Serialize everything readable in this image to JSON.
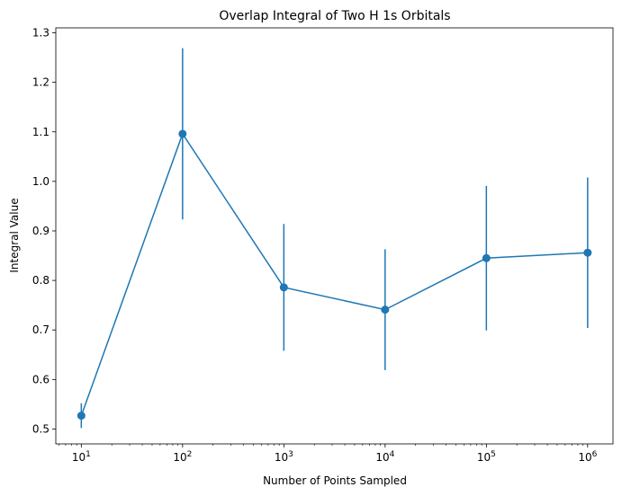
{
  "chart_data": {
    "type": "line",
    "title": "Overlap Integral of Two H 1s Orbitals",
    "xlabel": "Number of Points Sampled",
    "ylabel": "Integral Value",
    "x_scale": "log",
    "xlim": [
      5.6,
      1780000
    ],
    "ylim": [
      0.47,
      1.31
    ],
    "grid": false,
    "color": "#1f77b4",
    "x_ticks": [
      {
        "value": 10,
        "base": "10",
        "exp": "1"
      },
      {
        "value": 100,
        "base": "10",
        "exp": "2"
      },
      {
        "value": 1000,
        "base": "10",
        "exp": "3"
      },
      {
        "value": 10000,
        "base": "10",
        "exp": "4"
      },
      {
        "value": 100000,
        "base": "10",
        "exp": "5"
      },
      {
        "value": 1000000,
        "base": "10",
        "exp": "6"
      }
    ],
    "y_ticks": [
      "0.5",
      "0.6",
      "0.7",
      "0.8",
      "0.9",
      "1.0",
      "1.1",
      "1.2",
      "1.3"
    ],
    "series": [
      {
        "x": [
          10,
          100,
          1000,
          10000,
          100000,
          1000000
        ],
        "y": [
          0.527,
          1.096,
          0.786,
          0.741,
          0.845,
          0.856
        ],
        "error": [
          0.025,
          0.173,
          0.128,
          0.122,
          0.146,
          0.152
        ]
      }
    ]
  }
}
